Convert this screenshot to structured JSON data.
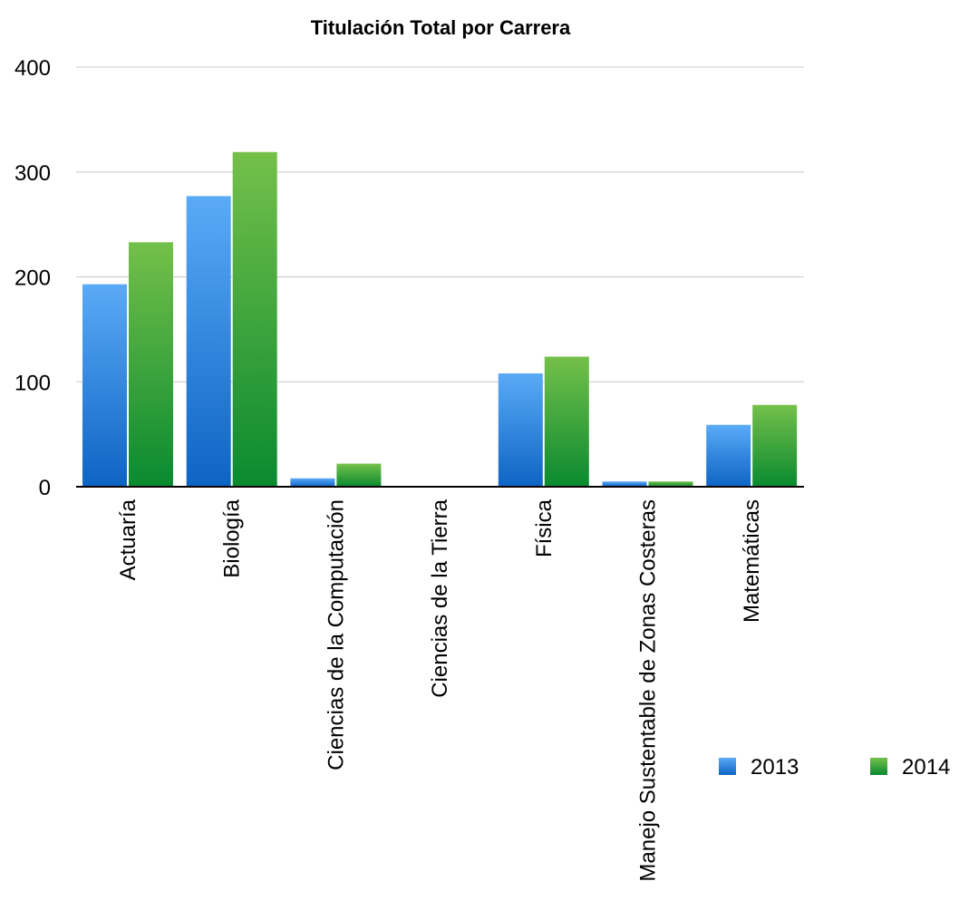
{
  "chart_data": {
    "type": "bar",
    "title": "Titulación Total por Carrera",
    "xlabel": "",
    "ylabel": "",
    "ylim": [
      0,
      400
    ],
    "yticks": [
      0,
      100,
      200,
      300,
      400
    ],
    "grid": true,
    "legend_position": "bottom-right",
    "categories": [
      "Actuaría",
      "Biología",
      "Ciencias de la Computación",
      "Ciencias de la Tierra",
      "Física",
      "Manejo Sustentable de Zonas Costeras",
      "Matemáticas"
    ],
    "series": [
      {
        "name": "2013",
        "color": "#3d8fe6",
        "values": [
          193,
          277,
          8,
          0,
          108,
          5,
          59
        ]
      },
      {
        "name": "2014",
        "color": "#3aa63a",
        "values": [
          233,
          319,
          22,
          0,
          124,
          5,
          78
        ]
      }
    ]
  }
}
